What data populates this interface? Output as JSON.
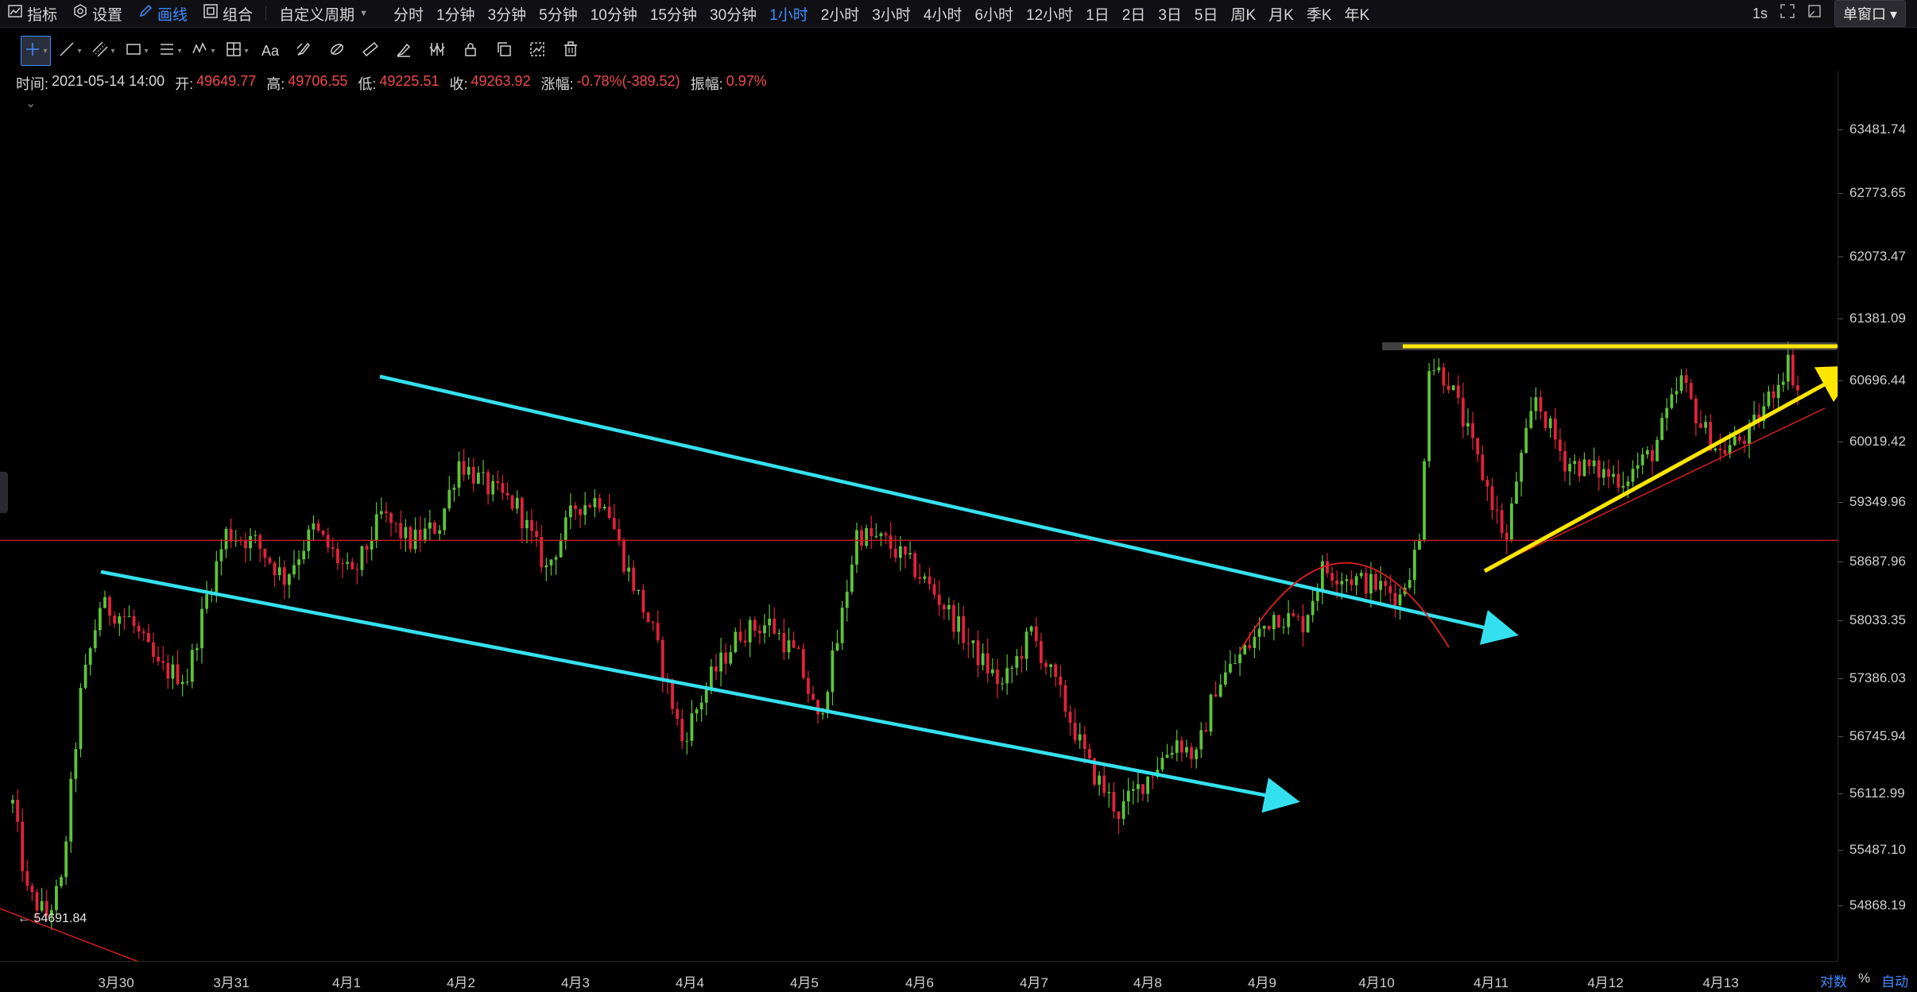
{
  "topbar": {
    "indicators": "指标",
    "settings": "设置",
    "draw": "画线",
    "combo": "组合",
    "custom_period": "自定义周期",
    "periods": [
      "分时",
      "1分钟",
      "3分钟",
      "5分钟",
      "10分钟",
      "15分钟",
      "30分钟",
      "1小时",
      "2小时",
      "3小时",
      "4小时",
      "6小时",
      "12小时",
      "1日",
      "2日",
      "3日",
      "5日",
      "周K",
      "月K",
      "季K",
      "年K"
    ],
    "active_period": "1小时",
    "refresh": "1s",
    "window_mode": "单窗口"
  },
  "toolbar2": {
    "text_tool": "Aa"
  },
  "info": {
    "time_label": "时间:",
    "time": "2021-05-14 14:00",
    "open_label": "开:",
    "open": "49649.77",
    "high_label": "高:",
    "high": "49706.55",
    "low_label": "低:",
    "low": "49225.51",
    "close_label": "收:",
    "close": "49263.92",
    "change_label": "涨幅:",
    "change": "-0.78%(-389.52)",
    "amp_label": "振幅:",
    "amp": "0.97%"
  },
  "chart_data": {
    "type": "candlestick",
    "interval": "1小时",
    "y_ticks": [
      "63481.74",
      "62773.65",
      "62073.47",
      "61381.09",
      "60696.44",
      "60019.42",
      "59349.96",
      "58687.96",
      "58033.35",
      "57386.03",
      "56745.94",
      "56112.99",
      "55487.10",
      "54868.19"
    ],
    "y_tick_values": [
      63481.74,
      62773.65,
      62073.47,
      61381.09,
      60696.44,
      60019.42,
      59349.96,
      58687.96,
      58033.35,
      57386.03,
      56745.94,
      56112.99,
      55487.1,
      54868.19
    ],
    "y_range": [
      54400,
      63900
    ],
    "x_ticks": [
      "3月30",
      "3月31",
      "4月1",
      "4月2",
      "4月3",
      "4月4",
      "4月5",
      "4月6",
      "4月7",
      "4月8",
      "4月9",
      "4月10",
      "4月11",
      "4月12",
      "4月13"
    ],
    "min_price_label": "← 54691.84",
    "horizontal_level": 58920,
    "anchors": [
      {
        "t": 0,
        "p": 56000
      },
      {
        "t": 3,
        "p": 55000
      },
      {
        "t": 7,
        "p": 54760
      },
      {
        "t": 10,
        "p": 55100
      },
      {
        "t": 14,
        "p": 57200
      },
      {
        "t": 18,
        "p": 58200
      },
      {
        "t": 24,
        "p": 58050
      },
      {
        "t": 30,
        "p": 57500
      },
      {
        "t": 36,
        "p": 57400
      },
      {
        "t": 40,
        "p": 58300
      },
      {
        "t": 44,
        "p": 59000
      },
      {
        "t": 50,
        "p": 58900
      },
      {
        "t": 56,
        "p": 58500
      },
      {
        "t": 62,
        "p": 59050
      },
      {
        "t": 70,
        "p": 58500
      },
      {
        "t": 76,
        "p": 59200
      },
      {
        "t": 82,
        "p": 58900
      },
      {
        "t": 88,
        "p": 59100
      },
      {
        "t": 92,
        "p": 59800
      },
      {
        "t": 98,
        "p": 59500
      },
      {
        "t": 104,
        "p": 59300
      },
      {
        "t": 110,
        "p": 58600
      },
      {
        "t": 116,
        "p": 59300
      },
      {
        "t": 122,
        "p": 59400
      },
      {
        "t": 126,
        "p": 58700
      },
      {
        "t": 132,
        "p": 57900
      },
      {
        "t": 138,
        "p": 56700
      },
      {
        "t": 144,
        "p": 57400
      },
      {
        "t": 150,
        "p": 57900
      },
      {
        "t": 156,
        "p": 58000
      },
      {
        "t": 162,
        "p": 57600
      },
      {
        "t": 166,
        "p": 56900
      },
      {
        "t": 170,
        "p": 57800
      },
      {
        "t": 174,
        "p": 59000
      },
      {
        "t": 180,
        "p": 58900
      },
      {
        "t": 186,
        "p": 58600
      },
      {
        "t": 192,
        "p": 58200
      },
      {
        "t": 198,
        "p": 57700
      },
      {
        "t": 204,
        "p": 57300
      },
      {
        "t": 210,
        "p": 57900
      },
      {
        "t": 216,
        "p": 57200
      },
      {
        "t": 222,
        "p": 56400
      },
      {
        "t": 228,
        "p": 55900
      },
      {
        "t": 234,
        "p": 56300
      },
      {
        "t": 240,
        "p": 56700
      },
      {
        "t": 244,
        "p": 56500
      },
      {
        "t": 248,
        "p": 57300
      },
      {
        "t": 254,
        "p": 57700
      },
      {
        "t": 260,
        "p": 58100
      },
      {
        "t": 266,
        "p": 58000
      },
      {
        "t": 270,
        "p": 58600
      },
      {
        "t": 276,
        "p": 58500
      },
      {
        "t": 282,
        "p": 58400
      },
      {
        "t": 286,
        "p": 58300
      },
      {
        "t": 290,
        "p": 58900
      },
      {
        "t": 292,
        "p": 60900
      },
      {
        "t": 296,
        "p": 60700
      },
      {
        "t": 300,
        "p": 60100
      },
      {
        "t": 304,
        "p": 59500
      },
      {
        "t": 308,
        "p": 58900
      },
      {
        "t": 310,
        "p": 59600
      },
      {
        "t": 314,
        "p": 60500
      },
      {
        "t": 320,
        "p": 59800
      },
      {
        "t": 326,
        "p": 59700
      },
      {
        "t": 332,
        "p": 59600
      },
      {
        "t": 338,
        "p": 59900
      },
      {
        "t": 344,
        "p": 60700
      },
      {
        "t": 348,
        "p": 60200
      },
      {
        "t": 352,
        "p": 59900
      },
      {
        "t": 358,
        "p": 60100
      },
      {
        "t": 362,
        "p": 60500
      },
      {
        "t": 366,
        "p": 60900
      },
      {
        "t": 368,
        "p": 60600
      }
    ],
    "annotations": [
      {
        "type": "channel-line",
        "color": "#35e0ee"
      },
      {
        "type": "channel-line",
        "color": "#35e0ee"
      },
      {
        "type": "trend-line",
        "color": "#ffe600"
      },
      {
        "type": "resistance-line",
        "color": "#ffe600"
      },
      {
        "type": "arc",
        "color": "#e02020"
      }
    ],
    "colors": {
      "up": "#5ec33a",
      "down": "#e0233a",
      "level": "#c41e1e"
    }
  },
  "footer": {
    "log": "对数",
    "percent": "%",
    "auto": "自动"
  }
}
